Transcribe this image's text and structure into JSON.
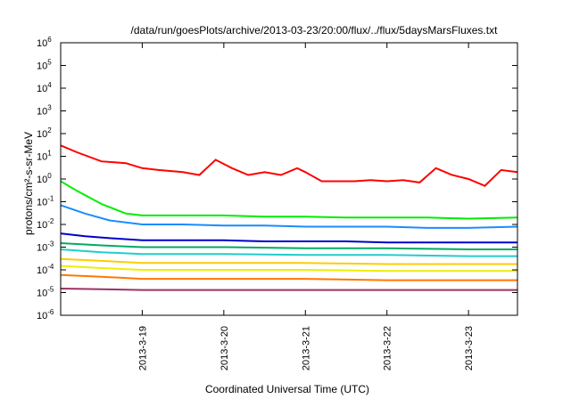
{
  "chart_data": {
    "type": "line",
    "title": "/data/run/goesPlots/archive/2013-03-23/20:00/flux/../flux/5daysMarsFluxes.txt",
    "xlabel": "Coordinated Universal Time (UTC)",
    "ylabel": "protons/cm²-s-sr-MeV",
    "xlim": [
      0,
      5.6
    ],
    "ylim_log10": [
      -6,
      6
    ],
    "y_scale": "log",
    "grid": false,
    "legend": "none",
    "x_ticks": [
      {
        "value": 1,
        "label": "2013-3-19"
      },
      {
        "value": 2,
        "label": "2013-3-20"
      },
      {
        "value": 3,
        "label": "2013-3-21"
      },
      {
        "value": 4,
        "label": "2013-3-22"
      },
      {
        "value": 5,
        "label": "2013-3-23"
      }
    ],
    "y_ticks": [
      {
        "exp": -6,
        "label": "10",
        "sup": "-6"
      },
      {
        "exp": -5,
        "label": "10",
        "sup": "-5"
      },
      {
        "exp": -4,
        "label": "10",
        "sup": "-4"
      },
      {
        "exp": -3,
        "label": "10",
        "sup": "-3"
      },
      {
        "exp": -2,
        "label": "10",
        "sup": "-2"
      },
      {
        "exp": -1,
        "label": "10",
        "sup": "-1"
      },
      {
        "exp": 0,
        "label": "10",
        "sup": "0"
      },
      {
        "exp": 1,
        "label": "10",
        "sup": "1"
      },
      {
        "exp": 2,
        "label": "10",
        "sup": "2"
      },
      {
        "exp": 3,
        "label": "10",
        "sup": "3"
      },
      {
        "exp": 4,
        "label": "10",
        "sup": "4"
      },
      {
        "exp": 5,
        "label": "10",
        "sup": "5"
      },
      {
        "exp": 6,
        "label": "10",
        "sup": "6"
      }
    ],
    "series": [
      {
        "color": "#ff0000",
        "x": [
          0,
          0.2,
          0.5,
          0.8,
          1.0,
          1.2,
          1.5,
          1.7,
          1.9,
          2.1,
          2.3,
          2.5,
          2.7,
          2.9,
          3.0,
          3.2,
          3.4,
          3.6,
          3.8,
          4.0,
          4.2,
          4.4,
          4.6,
          4.8,
          5.0,
          5.2,
          5.4,
          5.6
        ],
        "y": [
          30,
          15,
          6,
          5,
          3,
          2.5,
          2,
          1.5,
          7,
          3,
          1.5,
          2,
          1.5,
          3,
          2,
          0.8,
          0.8,
          0.8,
          0.9,
          0.8,
          0.9,
          0.7,
          3,
          1.5,
          1,
          0.5,
          2.5,
          2
        ]
      },
      {
        "color": "#00ee00",
        "x": [
          0,
          0.2,
          0.5,
          0.8,
          1.0,
          1.5,
          2.0,
          2.5,
          3.0,
          3.5,
          4.0,
          4.5,
          5.0,
          5.6
        ],
        "y": [
          0.8,
          0.3,
          0.08,
          0.03,
          0.025,
          0.025,
          0.025,
          0.022,
          0.022,
          0.02,
          0.02,
          0.02,
          0.018,
          0.02
        ]
      },
      {
        "color": "#1a8cff",
        "x": [
          0,
          0.3,
          0.6,
          1.0,
          1.5,
          2.0,
          2.5,
          3.0,
          3.5,
          4.0,
          4.5,
          5.0,
          5.6
        ],
        "y": [
          0.07,
          0.03,
          0.015,
          0.01,
          0.01,
          0.009,
          0.009,
          0.008,
          0.008,
          0.008,
          0.007,
          0.007,
          0.008
        ]
      },
      {
        "color": "#0000cc",
        "x": [
          0,
          0.3,
          0.6,
          1.0,
          1.5,
          2.0,
          2.5,
          3.0,
          3.5,
          4.0,
          4.5,
          5.0,
          5.6
        ],
        "y": [
          0.004,
          0.003,
          0.0025,
          0.002,
          0.002,
          0.002,
          0.0018,
          0.0018,
          0.0018,
          0.0016,
          0.0016,
          0.0016,
          0.0016
        ]
      },
      {
        "color": "#00aa66",
        "x": [
          0,
          0.5,
          1.0,
          2.0,
          3.0,
          4.0,
          5.0,
          5.6
        ],
        "y": [
          0.0015,
          0.0012,
          0.001,
          0.001,
          0.0009,
          0.0009,
          0.0008,
          0.0008
        ]
      },
      {
        "color": "#22cccc",
        "x": [
          0,
          0.5,
          1.0,
          2.0,
          3.0,
          4.0,
          5.0,
          5.6
        ],
        "y": [
          0.0008,
          0.0006,
          0.0005,
          0.0005,
          0.00045,
          0.00045,
          0.0004,
          0.0004
        ]
      },
      {
        "color": "#ffcc00",
        "x": [
          0,
          0.5,
          1.0,
          2.0,
          3.0,
          4.0,
          5.0,
          5.6
        ],
        "y": [
          0.0003,
          0.00025,
          0.0002,
          0.0002,
          0.0002,
          0.00018,
          0.00018,
          0.00018
        ]
      },
      {
        "color": "#eeee00",
        "x": [
          0,
          0.5,
          1.0,
          2.0,
          3.0,
          4.0,
          5.0,
          5.6
        ],
        "y": [
          0.00015,
          0.00012,
          0.0001,
          0.0001,
          0.0001,
          9e-05,
          9e-05,
          9e-05
        ]
      },
      {
        "color": "#ff7700",
        "x": [
          0,
          0.5,
          1.0,
          2.0,
          3.0,
          4.0,
          5.0,
          5.6
        ],
        "y": [
          6e-05,
          5e-05,
          4e-05,
          4e-05,
          4e-05,
          3.5e-05,
          3.5e-05,
          3.5e-05
        ]
      },
      {
        "color": "#993366",
        "x": [
          0,
          0.5,
          1.0,
          2.0,
          3.0,
          4.0,
          5.0,
          5.6
        ],
        "y": [
          1.5e-05,
          1.4e-05,
          1.3e-05,
          1.3e-05,
          1.3e-05,
          1.3e-05,
          1.3e-05,
          1.3e-05
        ]
      }
    ]
  }
}
